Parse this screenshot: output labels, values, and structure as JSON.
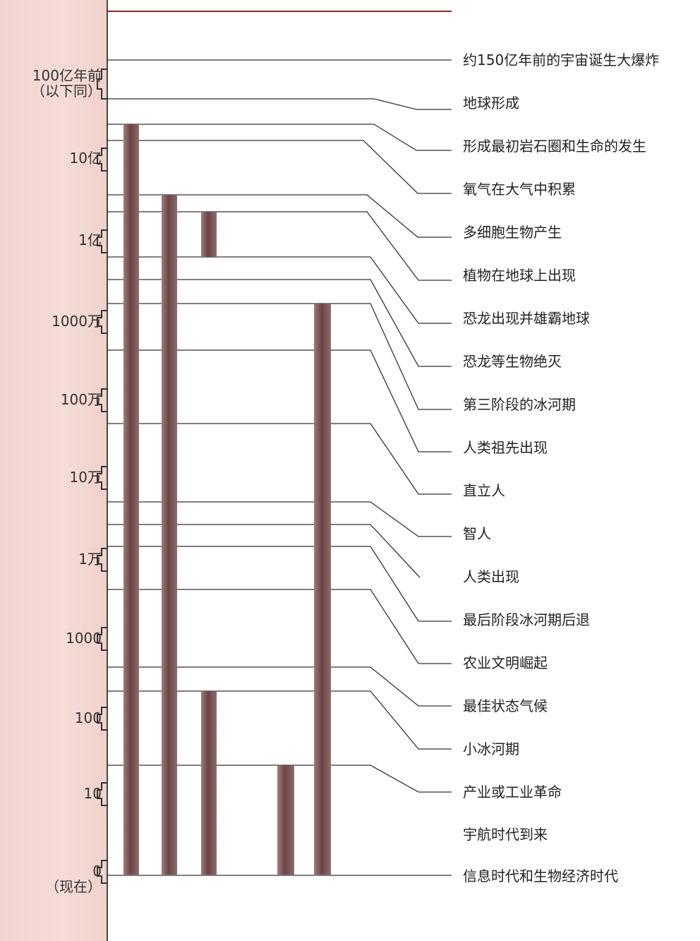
{
  "axis": {
    "labels": [
      {
        "text": "100亿年前",
        "sub": "（以下同）"
      },
      {
        "text": "10亿"
      },
      {
        "text": "1亿"
      },
      {
        "text": "1000万"
      },
      {
        "text": "100万"
      },
      {
        "text": "10万"
      },
      {
        "text": "1万"
      },
      {
        "text": "1000"
      },
      {
        "text": "100"
      },
      {
        "text": "10"
      },
      {
        "text": "0",
        "sub": "（现在）"
      }
    ]
  },
  "events": [
    {
      "label": "约150亿年前的宇宙诞生大爆炸"
    },
    {
      "label": "地球形成"
    },
    {
      "label": "形成最初岩石圈和生命的发生"
    },
    {
      "label": "氧气在大气中积累"
    },
    {
      "label": "多细胞生物产生"
    },
    {
      "label": "植物在地球上出现"
    },
    {
      "label": "恐龙出现并雄霸地球"
    },
    {
      "label": "恐龙等生物绝灭"
    },
    {
      "label": "第三阶段的冰河期"
    },
    {
      "label": "人类祖先出现"
    },
    {
      "label": "直立人"
    },
    {
      "label": "智人"
    },
    {
      "label": "人类出现"
    },
    {
      "label": "最后阶段冰河期后退"
    },
    {
      "label": "农业文明崛起"
    },
    {
      "label": "最佳状态气候"
    },
    {
      "label": "小冰河期"
    },
    {
      "label": "产业或工业革命"
    },
    {
      "label": "宇航时代到来"
    },
    {
      "label": "信息时代和生物经济时代"
    }
  ],
  "colors": {
    "axis_panel": "#f3d7d2",
    "bar": "#7a5656",
    "line": "#333333"
  }
}
